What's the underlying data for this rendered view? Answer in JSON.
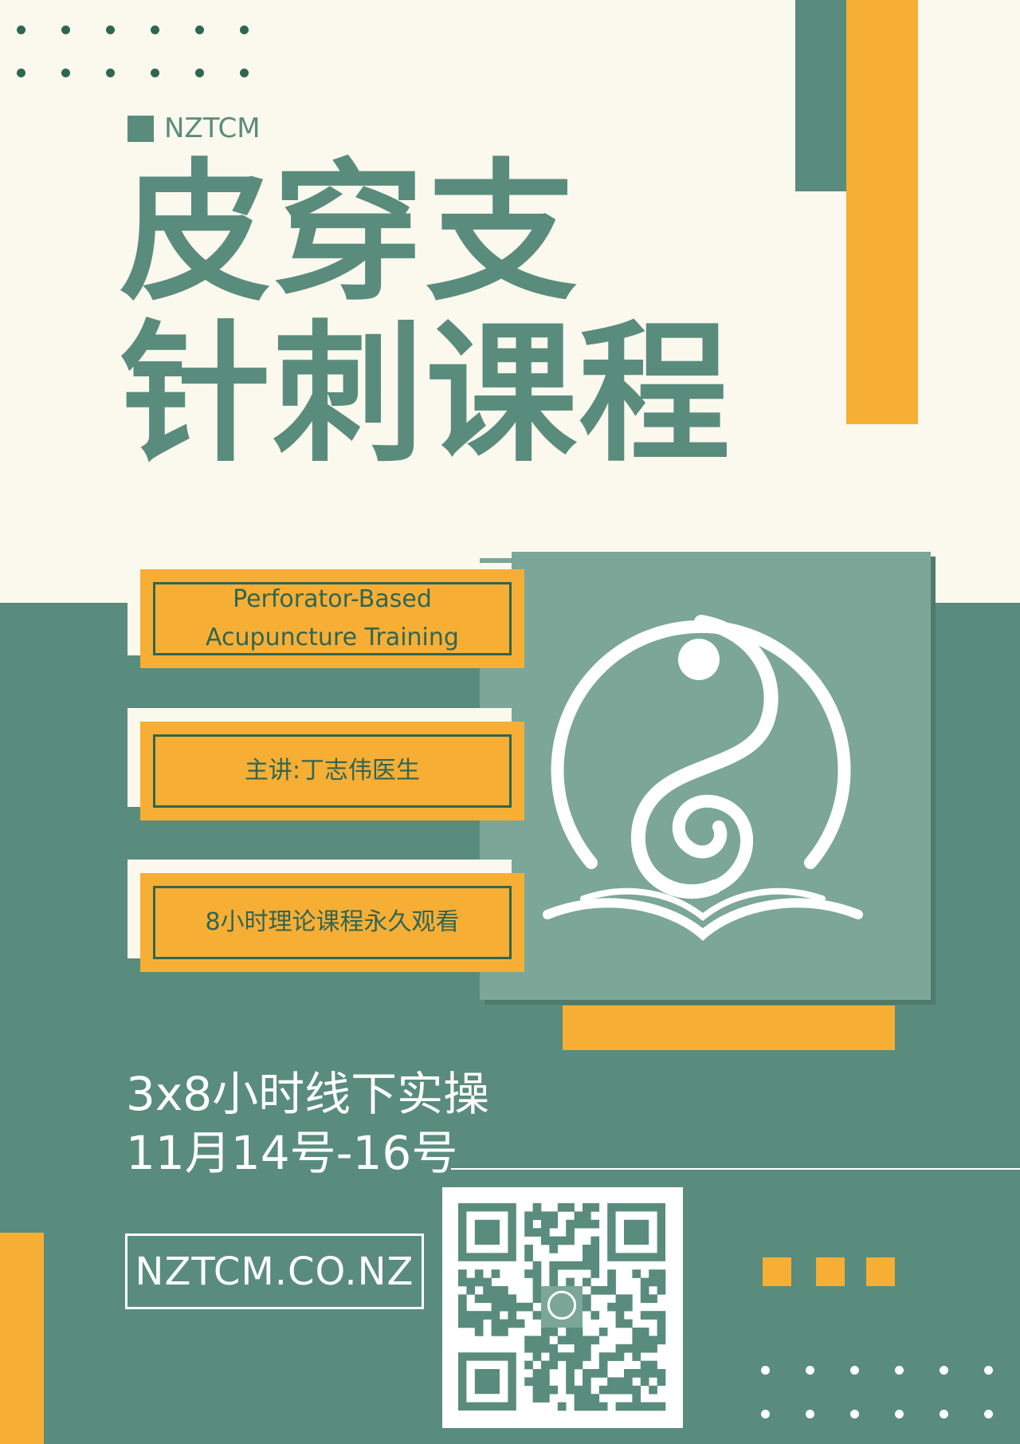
{
  "brand": {
    "name": "NZTCM"
  },
  "title": {
    "line1": "皮穿支",
    "line2": "针刺课程"
  },
  "cards": [
    {
      "text": "Perforator-Based\nAcupuncture Training"
    },
    {
      "text": "主讲:丁志伟医生"
    },
    {
      "text": "8小时理论课程永久观看"
    }
  ],
  "logo": {
    "icon": "yin-yang-book-logo-icon"
  },
  "workshop": {
    "line1": "3x8小时线下实操",
    "line2": "11月14号-16号"
  },
  "website": {
    "label": "NZTCM.CO.NZ"
  },
  "qr": {
    "icon": "qr-code-icon"
  },
  "colors": {
    "cream": "#FBF8EE",
    "green": "#598C7C",
    "dark_green": "#2F6653",
    "orange": "#F7AE35",
    "logo_panel": "#7BA698",
    "white": "#FFFFFF"
  }
}
